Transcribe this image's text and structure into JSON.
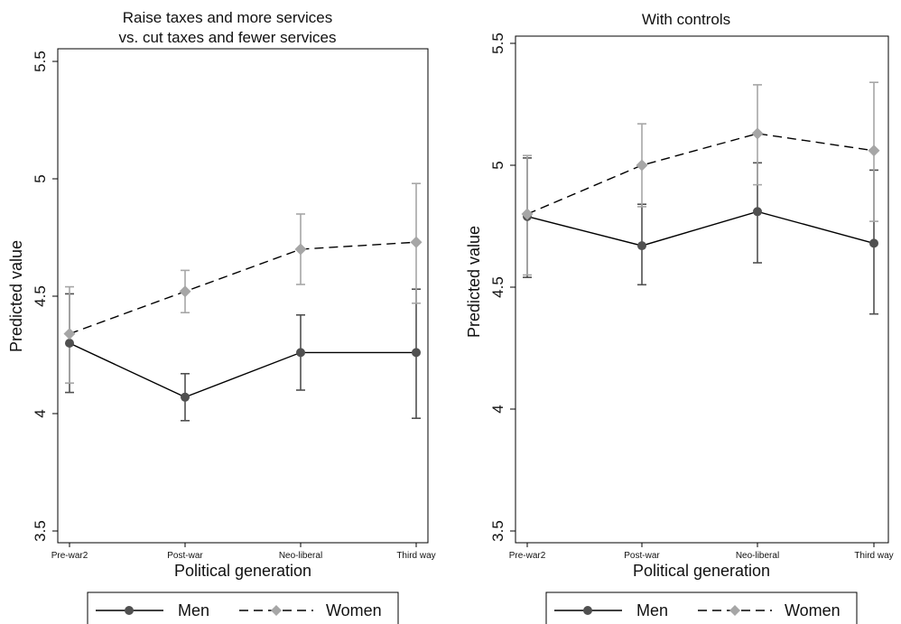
{
  "colors": {
    "men": "#505050",
    "women": "#a6a6a6",
    "frame": "#000000",
    "background": "#ffffff"
  },
  "legend": {
    "placement": "bottom",
    "men_label": "Men",
    "women_label": "Women"
  },
  "chart_data": [
    {
      "type": "line",
      "title_line1": "Raise taxes and more services",
      "title_line2": "vs. cut taxes and fewer services",
      "xlabel": "Political generation",
      "ylabel": "Predicted value",
      "categories": [
        "Pre-war2",
        "Post-war",
        "Neo-liberal",
        "Third way"
      ],
      "ylim": [
        3.5,
        5.5
      ],
      "yticks": [
        "3.5",
        "4",
        "4.5",
        "5",
        "5.5"
      ],
      "grid": false,
      "series": [
        {
          "name": "Men",
          "style": "solid",
          "marker": "circle",
          "values": [
            4.3,
            4.07,
            4.26,
            4.26
          ],
          "ci_low": [
            4.09,
            3.97,
            4.1,
            3.98
          ],
          "ci_high": [
            4.51,
            4.17,
            4.42,
            4.53
          ]
        },
        {
          "name": "Women",
          "style": "dashed",
          "marker": "diamond",
          "values": [
            4.34,
            4.52,
            4.7,
            4.73
          ],
          "ci_low": [
            4.13,
            4.43,
            4.55,
            4.47
          ],
          "ci_high": [
            4.54,
            4.61,
            4.85,
            4.98
          ]
        }
      ]
    },
    {
      "type": "line",
      "title_line1": "With controls",
      "title_line2": "",
      "xlabel": "Political generation",
      "ylabel": "Predicted value",
      "categories": [
        "Pre-war2",
        "Post-war",
        "Neo-liberal",
        "Third way"
      ],
      "ylim": [
        3.5,
        5.5
      ],
      "yticks": [
        "3.5",
        "4",
        "4.5",
        "5",
        "5.5"
      ],
      "grid": false,
      "series": [
        {
          "name": "Men",
          "style": "solid",
          "marker": "circle",
          "values": [
            4.79,
            4.67,
            4.81,
            4.68
          ],
          "ci_low": [
            4.54,
            4.51,
            4.6,
            4.39
          ],
          "ci_high": [
            5.03,
            4.84,
            5.01,
            4.98
          ]
        },
        {
          "name": "Women",
          "style": "dashed",
          "marker": "diamond",
          "values": [
            4.8,
            5.0,
            5.13,
            5.06
          ],
          "ci_low": [
            4.55,
            4.83,
            4.92,
            4.77
          ],
          "ci_high": [
            5.04,
            5.17,
            5.33,
            5.34
          ]
        }
      ]
    }
  ]
}
